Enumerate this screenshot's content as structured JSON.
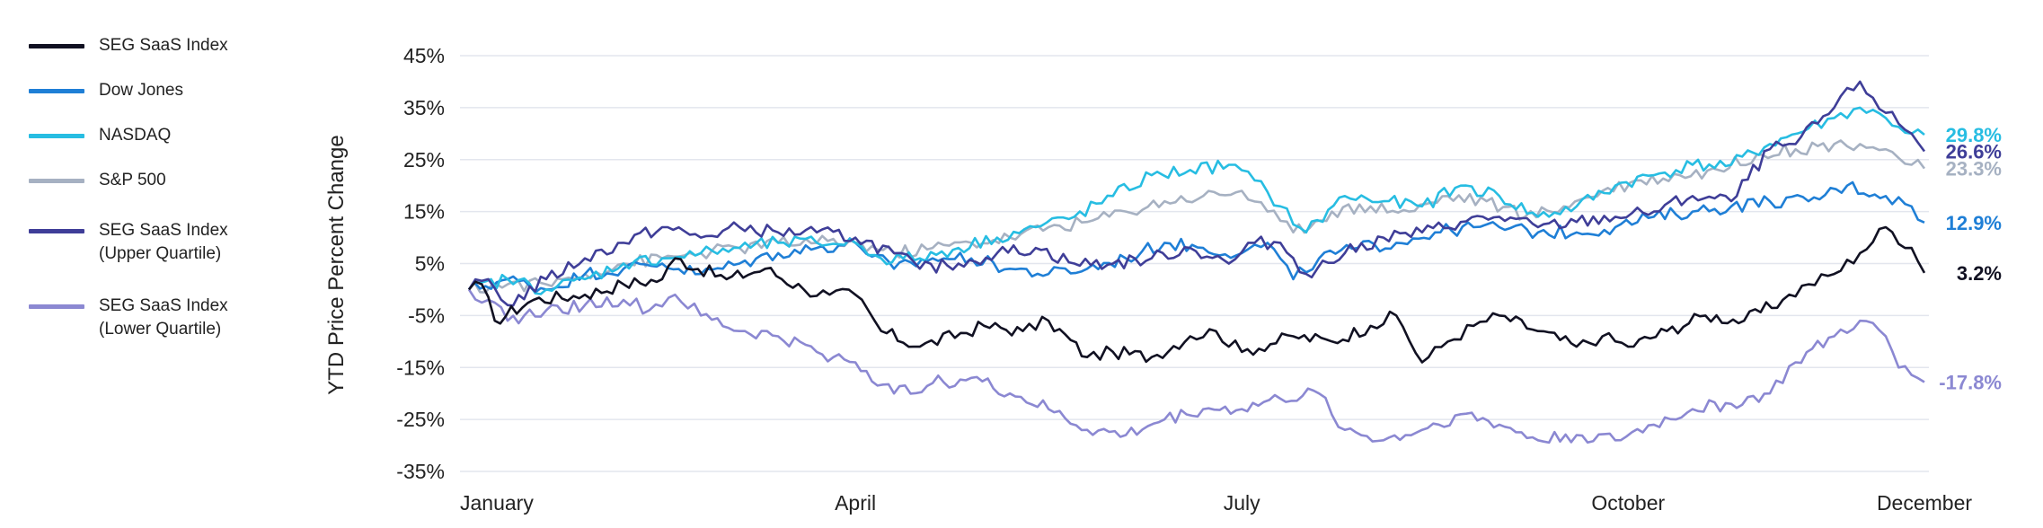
{
  "chart_data": {
    "type": "line",
    "title": "",
    "ylabel": "YTD Price Percent Change",
    "xlabel": "",
    "ylim": [
      -37,
      47
    ],
    "y_ticks": [
      45,
      35,
      25,
      15,
      5,
      -5,
      -15,
      -25,
      -35
    ],
    "y_tick_labels": [
      "45%",
      "35%",
      "25%",
      "15%",
      "5%",
      "-5%",
      "-15%",
      "-25%",
      "-35%"
    ],
    "x_tick_labels": [
      "January",
      "April",
      "July",
      "October",
      "December"
    ],
    "x_tick_months": [
      0,
      3,
      6,
      9,
      11.3
    ],
    "grid": true,
    "legend_placement": "left",
    "series": [
      {
        "name": "SEG SaaS Index",
        "legend_lines": [
          "SEG SaaS Index"
        ],
        "color": "#111122",
        "end_label": "3.2%",
        "end_value": 3.2,
        "points": [
          [
            0,
            0
          ],
          [
            0.1,
            1
          ],
          [
            0.2,
            -6
          ],
          [
            0.5,
            -2
          ],
          [
            0.9,
            -1
          ],
          [
            1.2,
            1
          ],
          [
            1.5,
            2
          ],
          [
            1.6,
            6
          ],
          [
            2.0,
            2
          ],
          [
            2.3,
            4
          ],
          [
            2.6,
            0
          ],
          [
            2.8,
            -1
          ],
          [
            3.0,
            -1
          ],
          [
            3.2,
            -8
          ],
          [
            3.5,
            -11
          ],
          [
            4.0,
            -7
          ],
          [
            4.3,
            -8
          ],
          [
            4.5,
            -6
          ],
          [
            4.8,
            -13
          ],
          [
            5.0,
            -12
          ],
          [
            5.3,
            -13
          ],
          [
            5.6,
            -9
          ],
          [
            5.8,
            -8
          ],
          [
            6.0,
            -12
          ],
          [
            6.4,
            -9
          ],
          [
            6.7,
            -10
          ],
          [
            7.0,
            -7
          ],
          [
            7.2,
            -5
          ],
          [
            7.4,
            -14
          ],
          [
            7.6,
            -10
          ],
          [
            7.8,
            -7
          ],
          [
            8.0,
            -5
          ],
          [
            8.3,
            -8
          ],
          [
            8.6,
            -11
          ],
          [
            8.8,
            -9
          ],
          [
            9.0,
            -11
          ],
          [
            9.3,
            -8
          ],
          [
            9.6,
            -5
          ],
          [
            9.9,
            -6
          ],
          [
            10.2,
            -2
          ],
          [
            10.4,
            1
          ],
          [
            10.6,
            3
          ],
          [
            10.8,
            7
          ],
          [
            11.0,
            12
          ],
          [
            11.2,
            8
          ],
          [
            11.3,
            3.2
          ]
        ]
      },
      {
        "name": "Dow Jones",
        "legend_lines": [
          "Dow Jones"
        ],
        "color": "#1f7fd6",
        "end_label": "12.9%",
        "end_value": 12.9,
        "points": [
          [
            0,
            0
          ],
          [
            0.3,
            2
          ],
          [
            0.6,
            0
          ],
          [
            0.9,
            3
          ],
          [
            1.2,
            4
          ],
          [
            1.5,
            5
          ],
          [
            1.8,
            3
          ],
          [
            2.1,
            5
          ],
          [
            2.4,
            7
          ],
          [
            2.7,
            8
          ],
          [
            3.0,
            9
          ],
          [
            3.3,
            4
          ],
          [
            3.6,
            6
          ],
          [
            3.9,
            6
          ],
          [
            4.2,
            4
          ],
          [
            4.5,
            3
          ],
          [
            4.8,
            4
          ],
          [
            5.1,
            6
          ],
          [
            5.4,
            9
          ],
          [
            5.7,
            8
          ],
          [
            6.0,
            7
          ],
          [
            6.2,
            9
          ],
          [
            6.4,
            2
          ],
          [
            6.6,
            6
          ],
          [
            6.9,
            8
          ],
          [
            7.2,
            9
          ],
          [
            7.5,
            11
          ],
          [
            7.8,
            12
          ],
          [
            8.0,
            12
          ],
          [
            8.3,
            11
          ],
          [
            8.6,
            11
          ],
          [
            8.9,
            12
          ],
          [
            9.2,
            14
          ],
          [
            9.5,
            15
          ],
          [
            9.8,
            16
          ],
          [
            10.1,
            17
          ],
          [
            10.4,
            17
          ],
          [
            10.7,
            20
          ],
          [
            11.0,
            18
          ],
          [
            11.2,
            16
          ],
          [
            11.3,
            12.9
          ]
        ]
      },
      {
        "name": "NASDAQ",
        "legend_lines": [
          "NASDAQ"
        ],
        "color": "#27bde2",
        "end_label": "29.8%",
        "end_value": 29.8,
        "points": [
          [
            0,
            0
          ],
          [
            0.3,
            2
          ],
          [
            0.6,
            0
          ],
          [
            0.9,
            2
          ],
          [
            1.2,
            5
          ],
          [
            1.5,
            6
          ],
          [
            1.8,
            7
          ],
          [
            2.1,
            8
          ],
          [
            2.4,
            9
          ],
          [
            2.7,
            9
          ],
          [
            3.0,
            9
          ],
          [
            3.2,
            6
          ],
          [
            3.5,
            6
          ],
          [
            3.8,
            8
          ],
          [
            4.1,
            10
          ],
          [
            4.4,
            12
          ],
          [
            4.7,
            14
          ],
          [
            5.0,
            18
          ],
          [
            5.3,
            22
          ],
          [
            5.6,
            23
          ],
          [
            5.9,
            24
          ],
          [
            6.1,
            21
          ],
          [
            6.3,
            16
          ],
          [
            6.5,
            11
          ],
          [
            6.8,
            18
          ],
          [
            7.1,
            17
          ],
          [
            7.4,
            16
          ],
          [
            7.7,
            20
          ],
          [
            8.0,
            18
          ],
          [
            8.3,
            14
          ],
          [
            8.6,
            16
          ],
          [
            8.9,
            20
          ],
          [
            9.2,
            22
          ],
          [
            9.5,
            24
          ],
          [
            9.8,
            24
          ],
          [
            10.1,
            28
          ],
          [
            10.4,
            31
          ],
          [
            10.6,
            33
          ],
          [
            10.8,
            35
          ],
          [
            11.0,
            33
          ],
          [
            11.2,
            30
          ],
          [
            11.3,
            29.8
          ]
        ]
      },
      {
        "name": "S&P 500",
        "legend_lines": [
          "S&P 500"
        ],
        "color": "#a6b1c2",
        "end_label": "23.3%",
        "end_value": 23.3,
        "points": [
          [
            0,
            0
          ],
          [
            0.3,
            1
          ],
          [
            0.6,
            1
          ],
          [
            0.9,
            3
          ],
          [
            1.2,
            5
          ],
          [
            1.5,
            6
          ],
          [
            1.8,
            7
          ],
          [
            2.1,
            8
          ],
          [
            2.4,
            9
          ],
          [
            2.7,
            9
          ],
          [
            3.0,
            9
          ],
          [
            3.3,
            7
          ],
          [
            3.6,
            8
          ],
          [
            3.9,
            9
          ],
          [
            4.2,
            10
          ],
          [
            4.5,
            12
          ],
          [
            4.8,
            13
          ],
          [
            5.1,
            15
          ],
          [
            5.4,
            17
          ],
          [
            5.7,
            18
          ],
          [
            6.0,
            19
          ],
          [
            6.2,
            15
          ],
          [
            6.4,
            11
          ],
          [
            6.7,
            15
          ],
          [
            7.0,
            16
          ],
          [
            7.3,
            15
          ],
          [
            7.6,
            18
          ],
          [
            7.9,
            17
          ],
          [
            8.2,
            14
          ],
          [
            8.5,
            16
          ],
          [
            8.8,
            19
          ],
          [
            9.1,
            21
          ],
          [
            9.4,
            22
          ],
          [
            9.7,
            23
          ],
          [
            10.0,
            26
          ],
          [
            10.3,
            27
          ],
          [
            10.6,
            28
          ],
          [
            10.8,
            28
          ],
          [
            11.0,
            27
          ],
          [
            11.2,
            24
          ],
          [
            11.3,
            23.3
          ]
        ]
      },
      {
        "name": "SEG SaaS Index (Upper Quartile)",
        "legend_lines": [
          "SEG SaaS Index",
          "(Upper Quartile)"
        ],
        "color": "#3f3e98",
        "end_label": "26.6%",
        "end_value": 26.6,
        "points": [
          [
            0,
            0
          ],
          [
            0.15,
            2
          ],
          [
            0.3,
            -3
          ],
          [
            0.6,
            2
          ],
          [
            0.9,
            6
          ],
          [
            1.2,
            9
          ],
          [
            1.5,
            12
          ],
          [
            1.8,
            10
          ],
          [
            2.1,
            12
          ],
          [
            2.4,
            11
          ],
          [
            2.7,
            11
          ],
          [
            3.0,
            10
          ],
          [
            3.3,
            7
          ],
          [
            3.5,
            4
          ],
          [
            3.8,
            5
          ],
          [
            4.1,
            7
          ],
          [
            4.4,
            8
          ],
          [
            4.7,
            5
          ],
          [
            5.0,
            5
          ],
          [
            5.3,
            6
          ],
          [
            5.6,
            8
          ],
          [
            5.9,
            5
          ],
          [
            6.1,
            9
          ],
          [
            6.3,
            9
          ],
          [
            6.5,
            3
          ],
          [
            6.8,
            7
          ],
          [
            7.1,
            10
          ],
          [
            7.4,
            11
          ],
          [
            7.7,
            13
          ],
          [
            8.0,
            14
          ],
          [
            8.3,
            12
          ],
          [
            8.6,
            13
          ],
          [
            8.9,
            14
          ],
          [
            9.2,
            15
          ],
          [
            9.5,
            18
          ],
          [
            9.8,
            17
          ],
          [
            10.1,
            27
          ],
          [
            10.3,
            28
          ],
          [
            10.6,
            35
          ],
          [
            10.8,
            40
          ],
          [
            11.0,
            34
          ],
          [
            11.2,
            30
          ],
          [
            11.3,
            26.6
          ]
        ]
      },
      {
        "name": "SEG SaaS Index (Lower Quartile)",
        "legend_lines": [
          "SEG SaaS Index",
          "(Lower Quartile)"
        ],
        "color": "#8b88d2",
        "end_label": "-17.8%",
        "end_value": -17.8,
        "points": [
          [
            0,
            0
          ],
          [
            0.15,
            -2
          ],
          [
            0.3,
            -6
          ],
          [
            0.6,
            -4
          ],
          [
            0.9,
            -3
          ],
          [
            1.2,
            -2
          ],
          [
            1.4,
            -4
          ],
          [
            1.6,
            -1
          ],
          [
            1.8,
            -5
          ],
          [
            2.1,
            -8
          ],
          [
            2.4,
            -9
          ],
          [
            2.7,
            -12
          ],
          [
            3.0,
            -14
          ],
          [
            3.3,
            -20
          ],
          [
            3.6,
            -18
          ],
          [
            3.9,
            -17
          ],
          [
            4.2,
            -20
          ],
          [
            4.5,
            -23
          ],
          [
            4.8,
            -27
          ],
          [
            5.1,
            -28
          ],
          [
            5.4,
            -25
          ],
          [
            5.7,
            -23
          ],
          [
            6.0,
            -23
          ],
          [
            6.3,
            -21
          ],
          [
            6.6,
            -20
          ],
          [
            6.8,
            -27
          ],
          [
            7.1,
            -29
          ],
          [
            7.4,
            -27
          ],
          [
            7.7,
            -24
          ],
          [
            8.0,
            -26
          ],
          [
            8.3,
            -29
          ],
          [
            8.6,
            -28
          ],
          [
            8.9,
            -29
          ],
          [
            9.2,
            -26
          ],
          [
            9.5,
            -23
          ],
          [
            9.8,
            -22
          ],
          [
            10.1,
            -20
          ],
          [
            10.3,
            -14
          ],
          [
            10.6,
            -9
          ],
          [
            10.8,
            -6
          ],
          [
            11.0,
            -9
          ],
          [
            11.1,
            -15
          ],
          [
            11.3,
            -17.8
          ]
        ]
      }
    ]
  }
}
